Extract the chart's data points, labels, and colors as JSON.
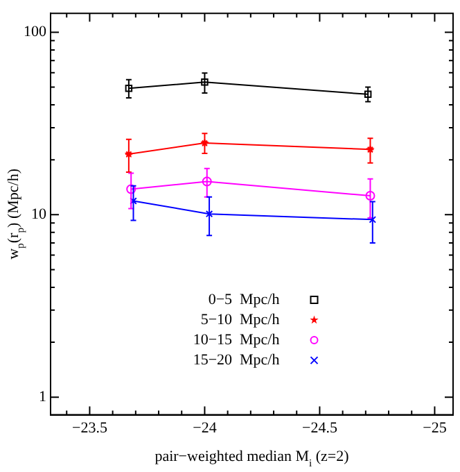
{
  "chart_data": {
    "type": "line",
    "xlabel": "pair−weighted median M$_{i}$ (z=2)",
    "ylabel": "w$_{p}$(r$_{p}$) (Mpc/h)",
    "log": "y",
    "grid": false,
    "legend": "bottom",
    "line_style": "solid",
    "xlim": [
      -23.33,
      -25.08
    ],
    "ylim": [
      0.8,
      127
    ],
    "xticks": [
      {
        "value": -23.5,
        "label": "−23.5"
      },
      {
        "value": -24,
        "label": "−24"
      },
      {
        "value": -24.5,
        "label": "−24.5"
      },
      {
        "value": -25,
        "label": "−25"
      },
      {
        "value": -23.4,
        "label": null
      },
      {
        "value": -23.6,
        "label": null
      },
      {
        "value": -23.7,
        "label": null
      },
      {
        "value": -23.8,
        "label": null
      },
      {
        "value": -23.9,
        "label": null
      },
      {
        "value": -24.1,
        "label": null
      },
      {
        "value": -24.2,
        "label": null
      },
      {
        "value": -24.3,
        "label": null
      },
      {
        "value": -24.4,
        "label": null
      },
      {
        "value": -24.6,
        "label": null
      },
      {
        "value": -24.7,
        "label": null
      },
      {
        "value": -24.8,
        "label": null
      },
      {
        "value": -24.9,
        "label": null
      }
    ],
    "yticks": [
      1,
      10,
      100,
      {
        "value": 2,
        "label": null
      },
      {
        "value": 3,
        "label": null
      },
      {
        "value": 4,
        "label": null
      },
      {
        "value": 5,
        "label": null
      },
      {
        "value": 6,
        "label": null
      },
      {
        "value": 7,
        "label": null
      },
      {
        "value": 8,
        "label": null
      },
      {
        "value": 9,
        "label": null
      },
      {
        "value": 20,
        "label": null
      },
      {
        "value": 30,
        "label": null
      },
      {
        "value": 40,
        "label": null
      },
      {
        "value": 50,
        "label": null
      },
      {
        "value": 60,
        "label": null
      },
      {
        "value": 70,
        "label": null
      },
      {
        "value": 80,
        "label": null
      },
      {
        "value": 90,
        "label": null
      }
    ],
    "series": [
      {
        "name": "0−5  Mpc/h",
        "color": "#000000",
        "marker": "square",
        "x": [
          -23.67,
          -24.0,
          -24.71
        ],
        "values": [
          49.3,
          53.3,
          45.7
        ],
        "errors": [
          [
            43.7,
            55
          ],
          [
            46.5,
            59.8
          ],
          [
            41.6,
            50
          ]
        ]
      },
      {
        "name": "5−10  Mpc/h",
        "color": "#ff0000",
        "marker": "star",
        "x": [
          -23.67,
          -24.0,
          -24.72
        ],
        "values": [
          21.5,
          24.7,
          22.8
        ],
        "errors": [
          [
            17.1,
            25.9
          ],
          [
            21.7,
            27.9
          ],
          [
            19.2,
            26.2
          ]
        ]
      },
      {
        "name": "10−15  Mpc/h",
        "color": "#ff00ff",
        "marker": "circle",
        "x": [
          -23.68,
          -24.01,
          -24.72
        ],
        "values": [
          13.8,
          15.2,
          12.7
        ],
        "errors": [
          [
            10.8,
            16.9
          ],
          [
            12.5,
            17.9
          ],
          [
            9.6,
            15.7
          ]
        ]
      },
      {
        "name": "15−20  Mpc/h",
        "color": "#0000ff",
        "marker": "cross",
        "x": [
          -23.69,
          -24.02,
          -24.73
        ],
        "values": [
          11.9,
          10.1,
          9.4
        ],
        "errors": [
          [
            9.3,
            14.4
          ],
          [
            7.7,
            12.5
          ],
          [
            7.0,
            11.8
          ]
        ]
      }
    ]
  }
}
